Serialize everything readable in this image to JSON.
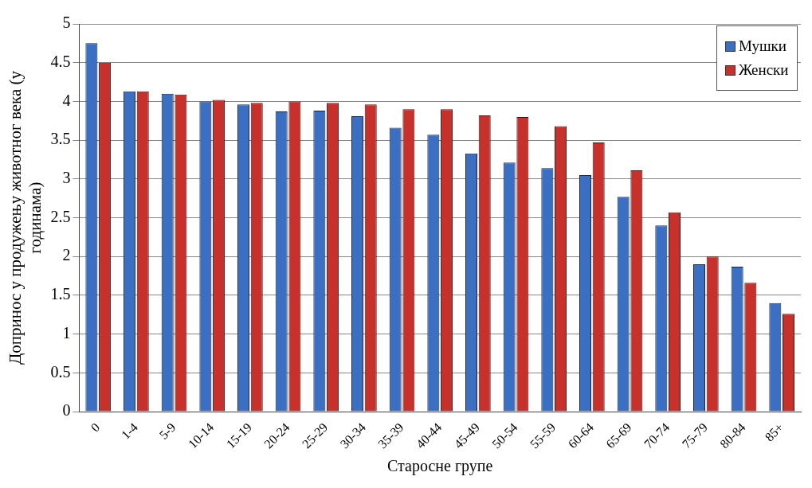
{
  "chart_data": {
    "type": "bar",
    "xlabel": "Старосне групе",
    "ylabel": "Допринос у продужењу животног века (у годинама)",
    "categories": [
      "0",
      "1-4",
      "5-9",
      "10-14",
      "15-19",
      "20-24",
      "25-29",
      "30-34",
      "35-39",
      "40-44",
      "45-49",
      "50-54",
      "55-59",
      "60-64",
      "65-69",
      "70-74",
      "75-79",
      "80-84",
      "85+"
    ],
    "series": [
      {
        "name": "Мушки",
        "color": "#3a6fc4",
        "values": [
          4.75,
          4.13,
          4.1,
          4.0,
          3.96,
          3.87,
          3.88,
          3.81,
          3.66,
          3.57,
          3.33,
          3.21,
          3.14,
          3.05,
          2.77,
          2.4,
          1.9,
          1.87,
          1.4
        ]
      },
      {
        "name": "Женски",
        "color": "#c8302c",
        "values": [
          4.5,
          4.13,
          4.09,
          4.02,
          3.98,
          4.0,
          3.98,
          3.96,
          3.9,
          3.9,
          3.82,
          3.8,
          3.68,
          3.47,
          3.11,
          2.57,
          2.0,
          1.66,
          1.26
        ]
      }
    ],
    "ylim": [
      0,
      5
    ],
    "yticks": [
      0,
      0.5,
      1,
      1.5,
      2,
      2.5,
      3,
      3.5,
      4,
      4.5,
      5
    ],
    "grid": "y",
    "legend": "top right"
  }
}
